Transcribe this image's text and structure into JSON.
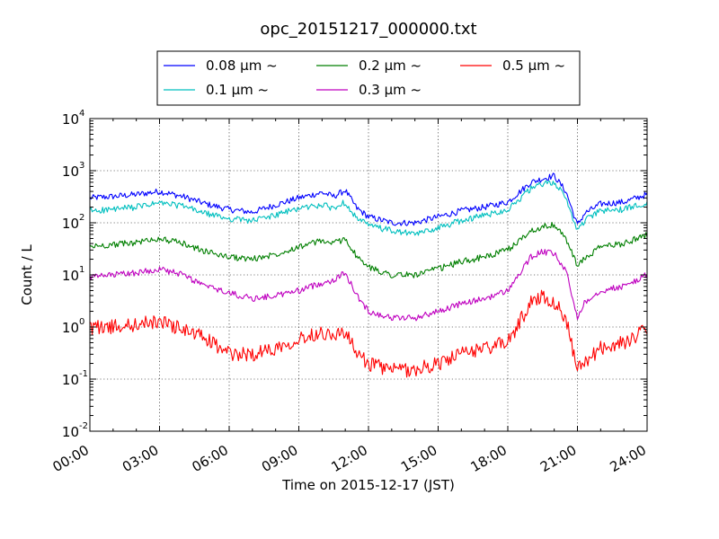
{
  "chart_data": {
    "type": "line",
    "title": "opc_20151217_000000.txt",
    "xlabel": "Time on 2015-12-17 (JST)",
    "ylabel": "Count / L",
    "yscale": "log",
    "ylim": [
      0.01,
      10000
    ],
    "xlim": [
      "00:00",
      "24:00"
    ],
    "x_ticks": [
      "00:00",
      "03:00",
      "06:00",
      "09:00",
      "12:00",
      "15:00",
      "18:00",
      "21:00",
      "24:00"
    ],
    "y_ticks": [
      {
        "value": 0.01,
        "base": "10",
        "exp": "-2"
      },
      {
        "value": 0.1,
        "base": "10",
        "exp": "-1"
      },
      {
        "value": 1,
        "base": "10",
        "exp": "0"
      },
      {
        "value": 10,
        "base": "10",
        "exp": "1"
      },
      {
        "value": 100,
        "base": "10",
        "exp": "2"
      },
      {
        "value": 1000,
        "base": "10",
        "exp": "3"
      },
      {
        "value": 10000,
        "base": "10",
        "exp": "4"
      }
    ],
    "grid": true,
    "legend_position": "top-center",
    "x_hours": [
      0,
      1,
      2,
      3,
      4,
      5,
      6,
      7,
      8,
      9,
      10,
      10.5,
      11,
      11.5,
      12,
      13,
      14,
      15,
      16,
      17,
      18,
      19,
      19.5,
      20,
      20.5,
      21,
      21.3,
      22,
      23,
      24
    ],
    "series": [
      {
        "name": "0.08 μm ~",
        "color": "#0000ff",
        "values": [
          300,
          320,
          350,
          400,
          320,
          230,
          180,
          160,
          220,
          300,
          380,
          320,
          420,
          190,
          130,
          100,
          100,
          130,
          170,
          200,
          250,
          600,
          700,
          800,
          400,
          90,
          150,
          230,
          250,
          350
        ]
      },
      {
        "name": "0.1 μm ~",
        "color": "#00bfbf",
        "values": [
          170,
          180,
          200,
          240,
          210,
          150,
          120,
          110,
          140,
          190,
          220,
          190,
          250,
          120,
          90,
          70,
          60,
          80,
          110,
          140,
          180,
          450,
          550,
          600,
          300,
          70,
          110,
          170,
          180,
          250
        ]
      },
      {
        "name": "0.2 μm ~",
        "color": "#007f00",
        "values": [
          35,
          38,
          42,
          50,
          40,
          28,
          22,
          20,
          25,
          35,
          45,
          40,
          50,
          22,
          14,
          10,
          10,
          13,
          18,
          22,
          30,
          70,
          85,
          90,
          50,
          15,
          20,
          35,
          40,
          60
        ]
      },
      {
        "name": "0.3 μm ~",
        "color": "#bf00bf",
        "values": [
          9,
          10,
          11,
          13,
          10,
          6,
          4.5,
          3.5,
          4,
          5,
          7,
          8,
          11,
          4,
          2,
          1.5,
          1.5,
          2,
          2.8,
          3.5,
          5,
          22,
          28,
          25,
          12,
          1.5,
          3,
          5,
          6,
          10
        ]
      },
      {
        "name": "0.5 μm ~",
        "color": "#ff0000",
        "values": [
          1,
          1,
          1.1,
          1.3,
          0.9,
          0.6,
          0.3,
          0.3,
          0.4,
          0.6,
          0.8,
          0.7,
          0.8,
          0.3,
          0.2,
          0.15,
          0.15,
          0.2,
          0.3,
          0.4,
          0.5,
          3,
          4,
          3,
          1.5,
          0.15,
          0.2,
          0.4,
          0.5,
          0.9
        ]
      }
    ]
  }
}
